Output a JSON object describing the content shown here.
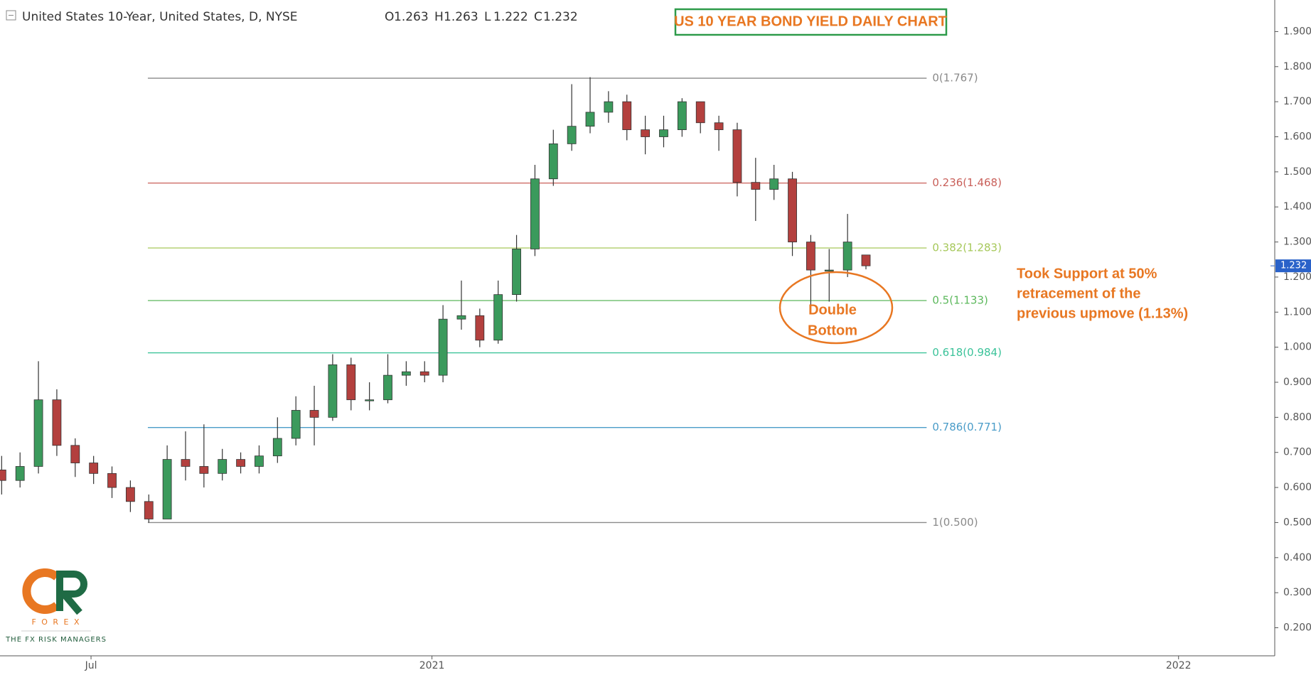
{
  "header": {
    "symbol": "United States 10-Year, United States, D, NYSE",
    "ohlc_letters": [
      "O",
      "H",
      "L",
      "C"
    ]
  },
  "logo": {
    "word": "F O R E X",
    "tagline": "THE FX RISK MANAGERS"
  },
  "chart_data": {
    "type": "candlestick",
    "title": "US 10 YEAR BOND YIELD DAILY CHART",
    "categories": [
      null,
      null,
      null,
      null,
      null,
      null,
      null,
      null,
      null,
      null,
      null,
      null,
      null,
      null,
      null,
      null,
      null,
      null,
      null,
      null,
      null,
      null,
      null,
      null,
      null,
      null,
      null,
      null,
      null,
      null,
      null,
      null,
      null,
      null,
      null,
      null,
      null,
      null,
      null,
      null,
      null,
      null,
      null,
      null,
      null,
      null,
      null,
      null
    ],
    "open": [
      0.65,
      0.62,
      0.66,
      0.85,
      0.72,
      0.67,
      0.64,
      0.6,
      0.56,
      0.51,
      0.68,
      0.66,
      0.64,
      0.68,
      0.66,
      0.69,
      0.74,
      0.82,
      0.8,
      0.95,
      0.85,
      0.85,
      0.92,
      0.93,
      0.92,
      1.08,
      1.09,
      1.02,
      1.15,
      1.28,
      1.48,
      1.58,
      1.63,
      1.67,
      1.7,
      1.62,
      1.6,
      1.62,
      1.7,
      1.64,
      1.62,
      1.47,
      1.45,
      1.48,
      1.3,
      1.22,
      1.22,
      1.263
    ],
    "high": [
      0.69,
      0.7,
      0.96,
      0.88,
      0.74,
      0.69,
      0.66,
      0.62,
      0.58,
      0.72,
      0.76,
      0.78,
      0.71,
      0.7,
      0.72,
      0.8,
      0.86,
      0.89,
      0.98,
      0.97,
      0.9,
      0.98,
      0.96,
      0.96,
      1.12,
      1.19,
      1.11,
      1.19,
      1.32,
      1.52,
      1.62,
      1.75,
      1.77,
      1.73,
      1.72,
      1.66,
      1.66,
      1.71,
      1.7,
      1.66,
      1.64,
      1.54,
      1.52,
      1.5,
      1.32,
      1.28,
      1.38,
      1.263
    ],
    "low": [
      0.58,
      0.6,
      0.64,
      0.69,
      0.63,
      0.61,
      0.57,
      0.53,
      0.5,
      0.51,
      0.62,
      0.6,
      0.62,
      0.64,
      0.64,
      0.67,
      0.72,
      0.72,
      0.79,
      0.82,
      0.82,
      0.84,
      0.89,
      0.9,
      0.9,
      1.05,
      1.0,
      1.01,
      1.13,
      1.26,
      1.46,
      1.56,
      1.61,
      1.64,
      1.59,
      1.55,
      1.57,
      1.6,
      1.61,
      1.56,
      1.43,
      1.36,
      1.42,
      1.26,
      1.12,
      1.13,
      1.2,
      1.222
    ],
    "close": [
      0.62,
      0.66,
      0.85,
      0.72,
      0.67,
      0.64,
      0.6,
      0.56,
      0.51,
      0.68,
      0.66,
      0.64,
      0.68,
      0.66,
      0.69,
      0.74,
      0.82,
      0.8,
      0.95,
      0.85,
      0.85,
      0.92,
      0.93,
      0.92,
      1.08,
      1.09,
      1.02,
      1.15,
      1.28,
      1.48,
      1.58,
      1.63,
      1.67,
      1.7,
      1.62,
      1.6,
      1.62,
      1.7,
      1.64,
      1.62,
      1.47,
      1.45,
      1.48,
      1.3,
      1.22,
      1.22,
      1.3,
      1.232
    ],
    "up_color": "#3b9a5c",
    "down_color": "#b3403e",
    "xlim": [
      -0.09,
      69.23
    ],
    "xticks": [
      {
        "value": 4.86,
        "label": "Jul"
      },
      {
        "value": 23.4,
        "label": "2021"
      },
      {
        "value": 64.0,
        "label": "2022"
      }
    ],
    "ylim": [
      0.12,
      1.99
    ],
    "yticks": [
      {
        "value": 0.2,
        "label": "0.200"
      },
      {
        "value": 0.3,
        "label": "0.300"
      },
      {
        "value": 0.4,
        "label": "0.400"
      },
      {
        "value": 0.5,
        "label": "0.500"
      },
      {
        "value": 0.6,
        "label": "0.600"
      },
      {
        "value": 0.7,
        "label": "0.700"
      },
      {
        "value": 0.8,
        "label": "0.800"
      },
      {
        "value": 0.9,
        "label": "0.900"
      },
      {
        "value": 1.0,
        "label": "1.000"
      },
      {
        "value": 1.1,
        "label": "1.100"
      },
      {
        "value": 1.2,
        "label": "1.200"
      },
      {
        "value": 1.3,
        "label": "1.300"
      },
      {
        "value": 1.4,
        "label": "1.400"
      },
      {
        "value": 1.5,
        "label": "1.500"
      },
      {
        "value": 1.6,
        "label": "1.600"
      },
      {
        "value": 1.7,
        "label": "1.700"
      },
      {
        "value": 1.8,
        "label": "1.800"
      },
      {
        "value": 1.9,
        "label": "1.900"
      }
    ],
    "fib_x": [
      7.95,
      50.3
    ],
    "fib": [
      {
        "label": "0(1.767)",
        "value": 1.767,
        "color": "#8a8a8a"
      },
      {
        "label": "0.236(1.468)",
        "value": 1.468,
        "color": "#c9605a"
      },
      {
        "label": "0.382(1.283)",
        "value": 1.283,
        "color": "#a6c85a"
      },
      {
        "label": "0.5(1.133)",
        "value": 1.133,
        "color": "#5cb85c"
      },
      {
        "label": "0.618(0.984)",
        "value": 0.984,
        "color": "#3cc39a"
      },
      {
        "label": "0.786(0.771)",
        "value": 0.771,
        "color": "#4a9cc8"
      },
      {
        "label": "1(0.500)",
        "value": 0.5,
        "color": "#8a8a8a"
      }
    ],
    "annotations": {
      "double_bottom": [
        "Double",
        "Bottom"
      ],
      "support_note": [
        "Took Support at 50%",
        "retracement of the",
        "previous upmove (1.13%)"
      ]
    }
  }
}
